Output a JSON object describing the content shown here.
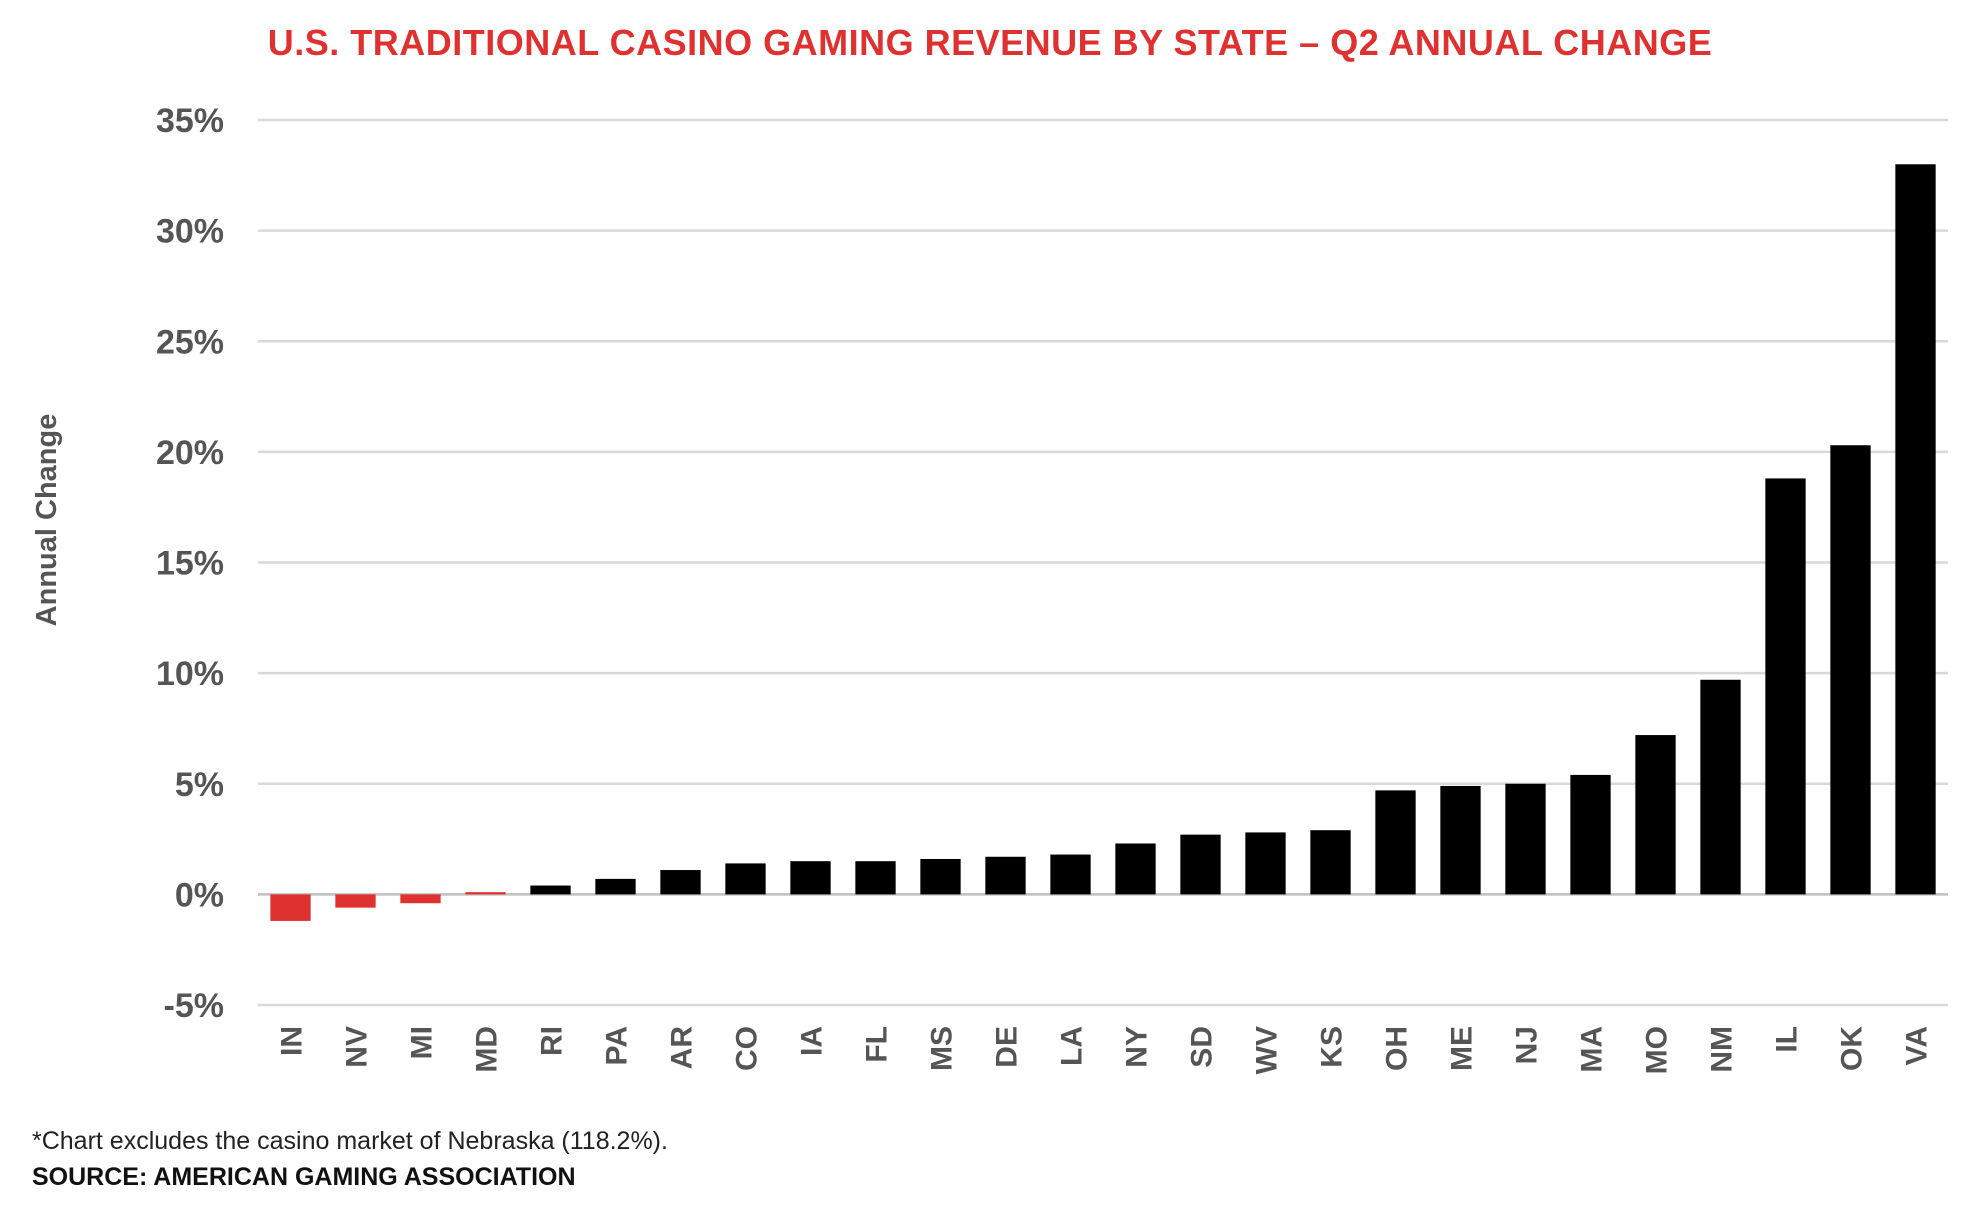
{
  "chart_data": {
    "type": "bar",
    "title": "U.S. TRADITIONAL CASINO GAMING REVENUE BY STATE – Q2 ANNUAL CHANGE",
    "xlabel": "",
    "ylabel": "Annual Change",
    "ylim": [
      -5,
      35
    ],
    "yticks": [
      35,
      30,
      25,
      20,
      15,
      10,
      5,
      0,
      -5
    ],
    "ytick_labels": [
      "35%",
      "30%",
      "25%",
      "20%",
      "15%",
      "10%",
      "5%",
      "0%",
      "-5%"
    ],
    "grid": true,
    "categories": [
      "IN",
      "NV",
      "MI",
      "MD",
      "RI",
      "PA",
      "AR",
      "CO",
      "IA",
      "FL",
      "MS",
      "DE",
      "LA",
      "NY",
      "SD",
      "WV",
      "KS",
      "OH",
      "ME",
      "NJ",
      "MA",
      "MO",
      "NM",
      "IL",
      "OK",
      "VA"
    ],
    "values": [
      -1.2,
      -0.6,
      -0.4,
      0.1,
      0.4,
      0.7,
      1.1,
      1.4,
      1.5,
      1.5,
      1.6,
      1.7,
      1.8,
      2.3,
      2.7,
      2.8,
      2.9,
      4.7,
      4.9,
      5.0,
      5.4,
      7.2,
      9.7,
      18.8,
      20.3,
      33.0
    ],
    "colors": {
      "positive": "#000000",
      "negative": "#e03131",
      "grid": "#d9d9d9"
    }
  },
  "footnote": "*Chart excludes the casino market of Nebraska (118.2%).",
  "source": "SOURCE: AMERICAN GAMING ASSOCIATION"
}
